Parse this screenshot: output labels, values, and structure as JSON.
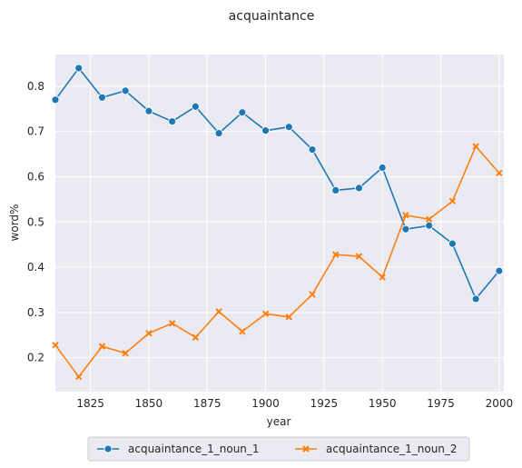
{
  "chart_data": {
    "type": "line",
    "title": "acquaintance",
    "xlabel": "year",
    "ylabel": "word%",
    "x": [
      1810,
      1820,
      1830,
      1840,
      1850,
      1860,
      1870,
      1880,
      1890,
      1900,
      1910,
      1920,
      1930,
      1940,
      1950,
      1960,
      1970,
      1980,
      1990,
      2000
    ],
    "series": [
      {
        "name": "acquaintance_1_noun_1",
        "color": "#1f77b4",
        "marker": "circle",
        "values": [
          0.77,
          0.84,
          0.775,
          0.79,
          0.745,
          0.722,
          0.755,
          0.696,
          0.742,
          0.702,
          0.71,
          0.66,
          0.57,
          0.575,
          0.62,
          0.484,
          0.492,
          0.452,
          0.33,
          0.392
        ]
      },
      {
        "name": "acquaintance_1_noun_2",
        "color": "#ff7f0e",
        "marker": "x",
        "values": [
          0.228,
          0.158,
          0.225,
          0.21,
          0.254,
          0.276,
          0.245,
          0.302,
          0.258,
          0.297,
          0.29,
          0.34,
          0.428,
          0.424,
          0.378,
          0.515,
          0.506,
          0.546,
          0.667,
          0.608
        ]
      }
    ],
    "xlim": [
      1810,
      2002
    ],
    "ylim": [
      0.125,
      0.87
    ],
    "xticks": [
      1825,
      1850,
      1875,
      1900,
      1925,
      1950,
      1975,
      2000
    ],
    "yticks": [
      0.2,
      0.3,
      0.4,
      0.5,
      0.6,
      0.7,
      0.8
    ],
    "grid": true,
    "legend_position": "bottom-center"
  }
}
